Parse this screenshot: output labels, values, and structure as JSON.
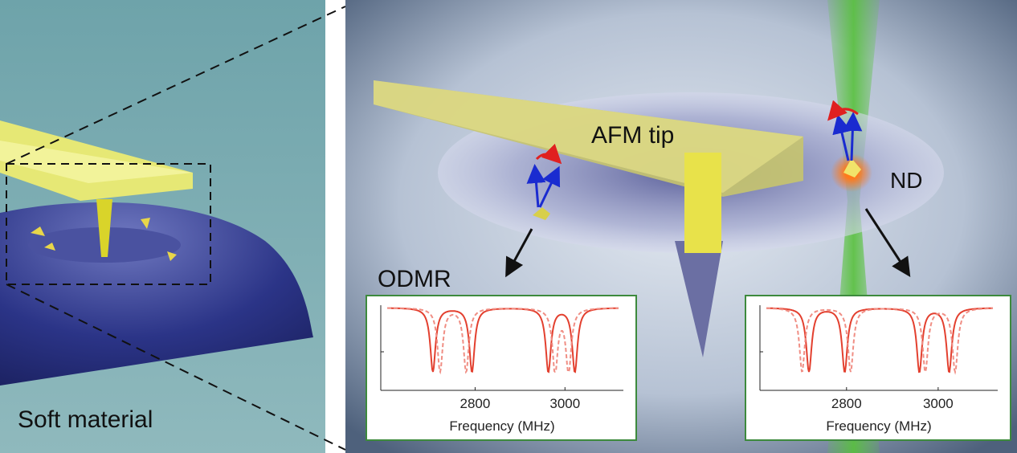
{
  "left_panel": {
    "label": "Soft material"
  },
  "right_panel": {
    "afm_tip": "AFM tip",
    "nd": "ND",
    "odmr": "ODMR"
  },
  "insets": [
    {
      "xlim": [
        2590,
        3130
      ],
      "xticks": [
        2800,
        3000
      ],
      "xlabel": "Frequency (MHz)",
      "series": [
        {
          "style": "solid",
          "color": "#e3402f",
          "dips": [
            2706,
            2793,
            2963,
            3022
          ]
        },
        {
          "style": "dashed",
          "color": "#f08e84",
          "dips": [
            2722,
            2780,
            2978,
            3008
          ]
        }
      ]
    },
    {
      "xlim": [
        2611,
        3130
      ],
      "xticks": [
        2800,
        3000
      ],
      "xlabel": "Frequency (MHz)",
      "series": [
        {
          "style": "solid",
          "color": "#e3402f",
          "dips": [
            2718,
            2796,
            2959,
            3024
          ]
        },
        {
          "style": "dashed",
          "color": "#f08e84",
          "dips": [
            2703,
            2809,
            2972,
            3037
          ]
        }
      ]
    }
  ]
}
